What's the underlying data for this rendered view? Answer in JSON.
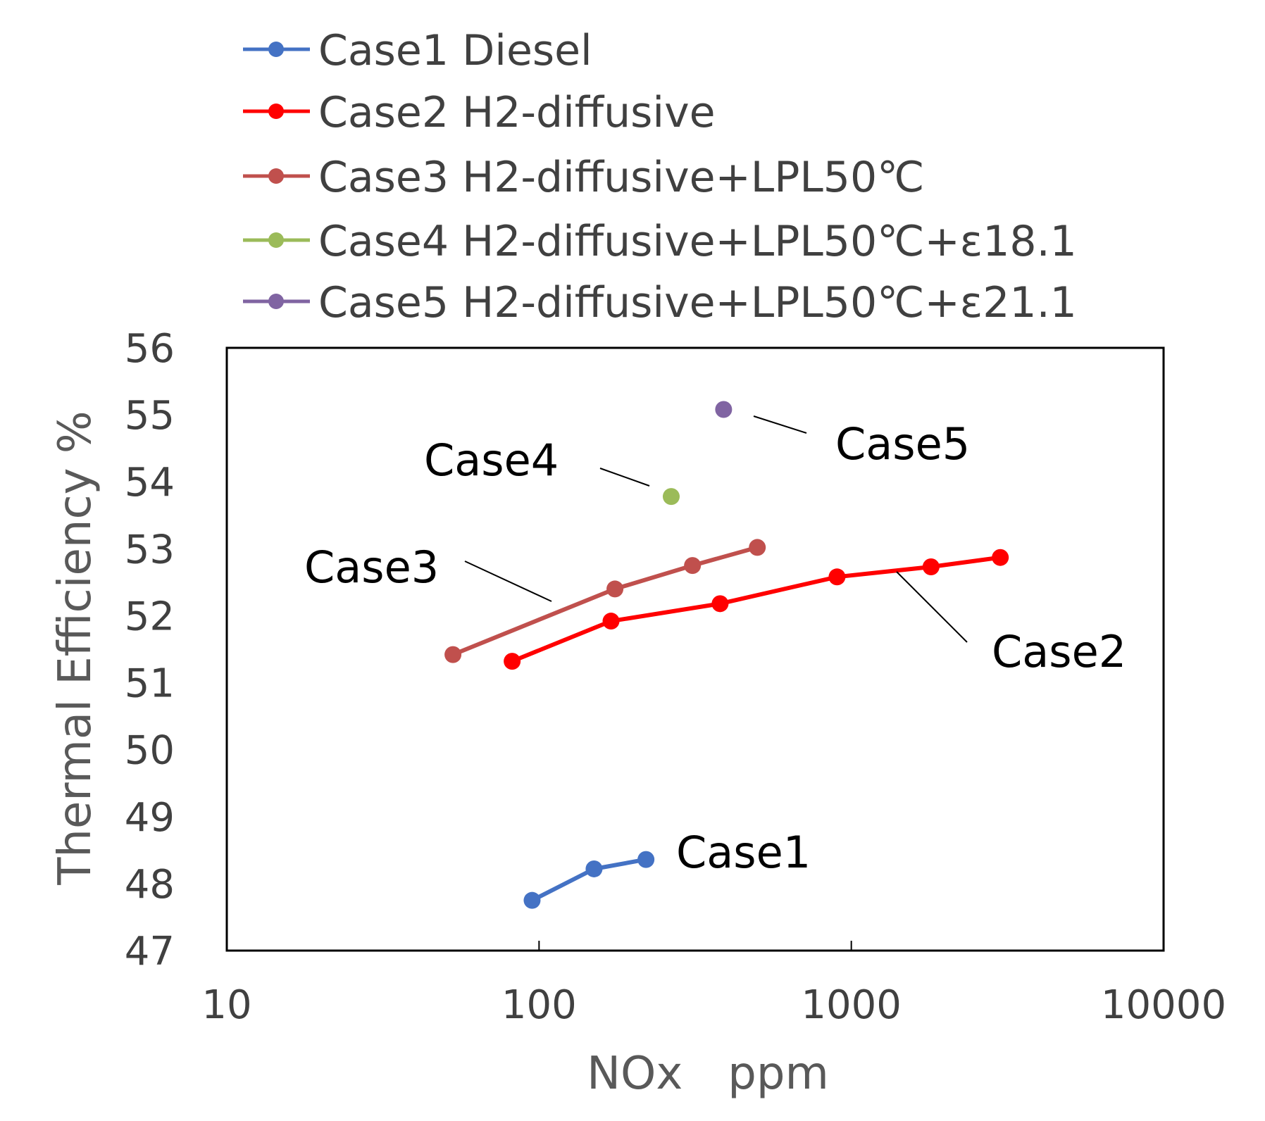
{
  "chart_data": {
    "type": "line",
    "title": "",
    "xlabel": "NOx　ppm",
    "ylabel": "Thermal Efficiency %",
    "xscale": "log",
    "xlim": [
      10,
      10000
    ],
    "ylim": [
      47,
      56
    ],
    "xticks": [
      "10",
      "100",
      "1000",
      "10000"
    ],
    "yticks": [
      "47",
      "48",
      "49",
      "50",
      "51",
      "52",
      "53",
      "54",
      "55",
      "56"
    ],
    "grid": false,
    "legend_position": "top",
    "series": [
      {
        "name": "Case1 Diesel",
        "color": "#4472c4",
        "x": [
          95,
          150,
          220
        ],
        "y": [
          47.75,
          48.22,
          48.36
        ]
      },
      {
        "name": "Case2 H2-diffusive",
        "color": "#ff0000",
        "x": [
          82,
          170,
          380,
          900,
          1800,
          3000
        ],
        "y": [
          51.32,
          51.92,
          52.18,
          52.58,
          52.73,
          52.87
        ]
      },
      {
        "name": "Case3 H2-diffusive+LPL50℃",
        "color": "#c0504d",
        "x": [
          53,
          175,
          310,
          500
        ],
        "y": [
          51.42,
          52.4,
          52.75,
          53.02
        ]
      },
      {
        "name": "Case4 H2-diffusive+LPL50℃+ε18.1",
        "color": "#9bbb59",
        "x": [
          265
        ],
        "y": [
          53.78
        ]
      },
      {
        "name": "Case5 H2-diffusive+LPL50℃+ε21.1",
        "color": "#8064a2",
        "x": [
          390
        ],
        "y": [
          55.08
        ]
      }
    ],
    "annotations": [
      {
        "text": "Case1",
        "target_x": 220,
        "target_y": 48.36
      },
      {
        "text": "Case2",
        "target_x": 1300,
        "target_y": 52.68
      },
      {
        "text": "Case3",
        "target_x": 110,
        "target_y": 52.2
      },
      {
        "text": "Case4",
        "target_x": 255,
        "target_y": 53.82
      },
      {
        "text": "Case5",
        "target_x": 430,
        "target_y": 54.98
      }
    ]
  }
}
